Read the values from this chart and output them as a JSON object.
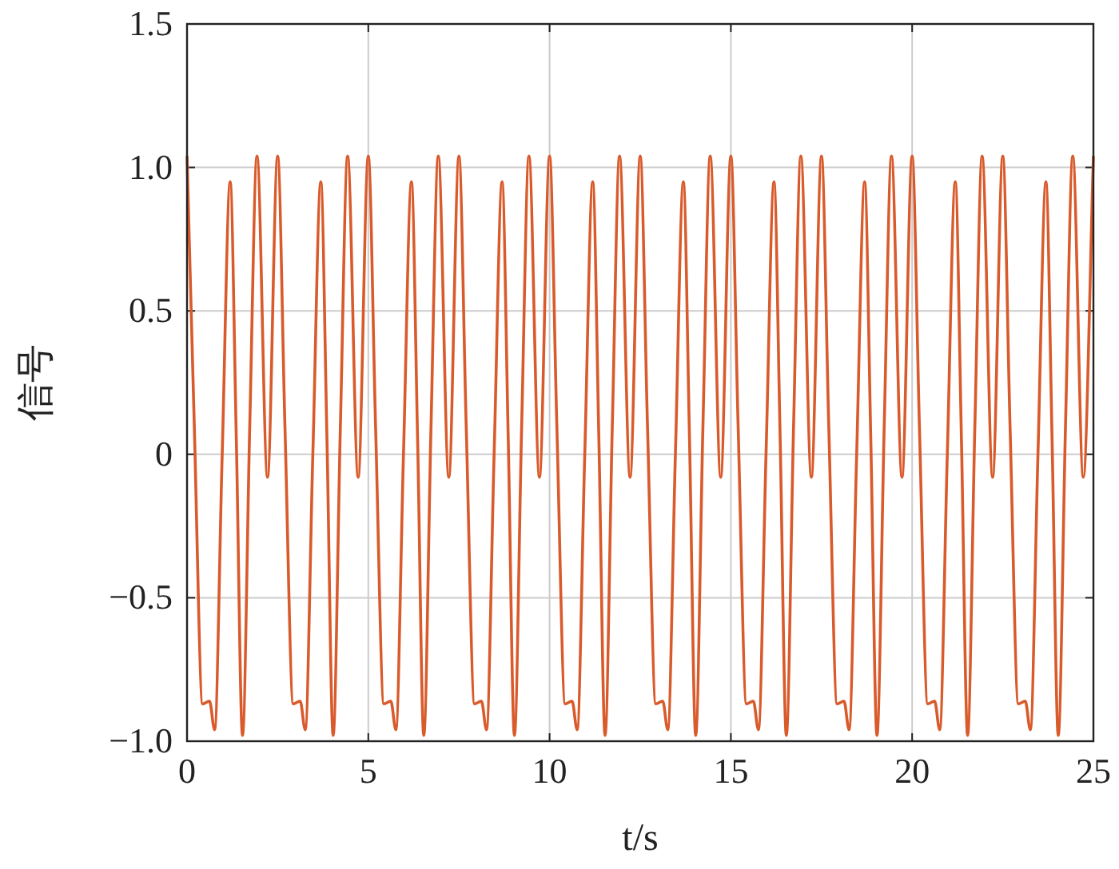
{
  "chart_data": {
    "type": "line",
    "xlabel": "t/s",
    "ylabel": "信号",
    "xlim": [
      0,
      25
    ],
    "xticks": [
      0,
      5,
      10,
      15,
      20,
      25
    ],
    "ylim": [
      -1,
      1.5
    ],
    "yticks": [
      {
        "value": -1,
        "label": "−1.0"
      },
      {
        "value": -0.5,
        "label": "−0.5"
      },
      {
        "value": 0,
        "label": "0"
      },
      {
        "value": 0.5,
        "label": "0.5"
      },
      {
        "value": 1,
        "label": "1.0"
      },
      {
        "value": 1.5,
        "label": "1.5"
      }
    ],
    "grid": true,
    "line_style": "solid",
    "marker": "none",
    "series": [
      {
        "color": "#d95a2b",
        "x": [
          0,
          0.2,
          0.43,
          0.62,
          0.76,
          0.97,
          1.19,
          1.36,
          1.53,
          1.73,
          1.93,
          2.22,
          2.5,
          2.7,
          2.93,
          3.12,
          3.26,
          3.47,
          3.69,
          3.86,
          4.03,
          4.23,
          4.43,
          4.72,
          5,
          5.2,
          5.43,
          5.62,
          5.76,
          5.97,
          6.19,
          6.36,
          6.53,
          6.73,
          6.93,
          7.22,
          7.5,
          7.7,
          7.93,
          8.12,
          8.26,
          8.47,
          8.69,
          8.86,
          9.03,
          9.23,
          9.43,
          9.72,
          10,
          10.2,
          10.43,
          10.62,
          10.76,
          10.97,
          11.19,
          11.36,
          11.53,
          11.73,
          11.93,
          12.22,
          12.5,
          12.7,
          12.93,
          13.12,
          13.26,
          13.47,
          13.69,
          13.86,
          14.03,
          14.23,
          14.43,
          14.72,
          15,
          15.2,
          15.43,
          15.62,
          15.76,
          15.97,
          16.19,
          16.36,
          16.53,
          16.73,
          16.93,
          17.22,
          17.5,
          17.7,
          17.93,
          18.12,
          18.26,
          18.47,
          18.69,
          18.86,
          19.03,
          19.23,
          19.43,
          19.72,
          20,
          20.2,
          20.43,
          20.62,
          20.76,
          20.97,
          21.19,
          21.36,
          21.53,
          21.73,
          21.93,
          22.22,
          22.5,
          22.7,
          22.93,
          23.12,
          23.26,
          23.47,
          23.69,
          23.86,
          24.03,
          24.23,
          24.43,
          24.72,
          25
        ],
        "values": [
          1.04,
          0.1,
          -0.87,
          -0.86,
          -0.96,
          0,
          0.95,
          0.05,
          -0.98,
          0.1,
          1.04,
          -0.08,
          1.04,
          0.1,
          -0.87,
          -0.86,
          -0.96,
          0,
          0.95,
          0.05,
          -0.98,
          0.1,
          1.04,
          -0.08,
          1.04,
          0.1,
          -0.87,
          -0.86,
          -0.96,
          0,
          0.95,
          0.05,
          -0.98,
          0.1,
          1.04,
          -0.08,
          1.04,
          0.1,
          -0.87,
          -0.86,
          -0.96,
          0,
          0.95,
          0.05,
          -0.98,
          0.1,
          1.04,
          -0.08,
          1.04,
          0.1,
          -0.87,
          -0.86,
          -0.96,
          0,
          0.95,
          0.05,
          -0.98,
          0.1,
          1.04,
          -0.08,
          1.04,
          0.1,
          -0.87,
          -0.86,
          -0.96,
          0,
          0.95,
          0.05,
          -0.98,
          0.1,
          1.04,
          -0.08,
          1.04,
          0.1,
          -0.87,
          -0.86,
          -0.96,
          0,
          0.95,
          0.05,
          -0.98,
          0.1,
          1.04,
          -0.08,
          1.04,
          0.1,
          -0.87,
          -0.86,
          -0.96,
          0,
          0.95,
          0.05,
          -0.98,
          0.1,
          1.04,
          -0.08,
          1.04,
          0.1,
          -0.87,
          -0.86,
          -0.96,
          0,
          0.95,
          0.05,
          -0.98,
          0.1,
          1.04,
          -0.08,
          1.04,
          0.1,
          -0.87,
          -0.86,
          -0.96,
          0,
          0.95,
          0.05,
          -0.98,
          0.1,
          1.04,
          -0.08,
          1.04
        ]
      }
    ]
  }
}
